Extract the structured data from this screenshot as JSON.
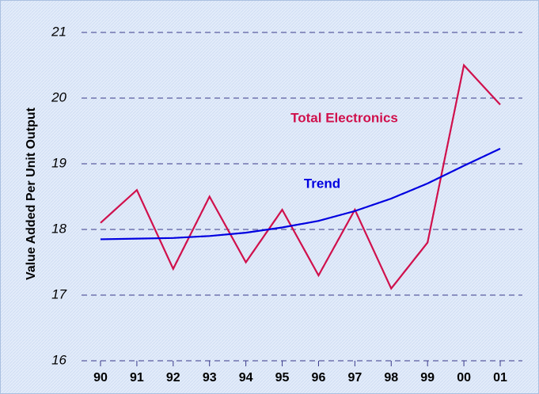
{
  "chart_data": {
    "type": "line",
    "y_label": "Value Added Per Unit Output",
    "categories": [
      "90",
      "91",
      "92",
      "93",
      "94",
      "95",
      "96",
      "97",
      "98",
      "99",
      "00",
      "01"
    ],
    "series": [
      {
        "name": "Total Electronics",
        "color": "#d0104c",
        "values": [
          18.1,
          18.6,
          17.4,
          18.5,
          17.5,
          18.3,
          17.3,
          18.3,
          17.1,
          17.8,
          20.5,
          19.9
        ]
      },
      {
        "name": "Trend",
        "color": "#0000e0",
        "values": [
          17.85,
          17.86,
          17.87,
          17.9,
          17.95,
          18.03,
          18.13,
          18.28,
          18.47,
          18.7,
          18.97,
          19.23
        ]
      }
    ],
    "ylim": [
      16,
      21
    ],
    "yticks": [
      16,
      17,
      18,
      19,
      20,
      21
    ],
    "grid": true
  }
}
